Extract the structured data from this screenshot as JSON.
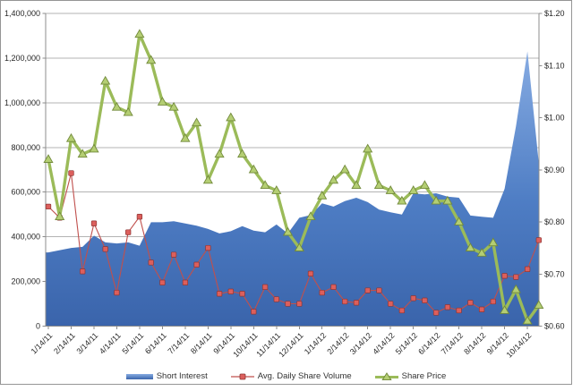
{
  "chart_data": {
    "type": "combo",
    "title": "",
    "x_tick_labels": [
      "1/14/11",
      "2/14/11",
      "3/14/11",
      "4/14/11",
      "5/14/11",
      "6/14/11",
      "7/14/11",
      "8/14/11",
      "9/14/11",
      "10/14/11",
      "11/14/11",
      "12/14/11",
      "1/14/12",
      "2/14/12",
      "3/14/12",
      "4/14/12",
      "5/14/12",
      "6/14/12",
      "7/14/12",
      "8/14/12",
      "9/14/12",
      "10/14/12"
    ],
    "points_per_tick": 2,
    "left_axis": {
      "min": 0,
      "max": 1400000,
      "step": 200000,
      "tick_labels": [
        "0",
        "200,000",
        "400,000",
        "600,000",
        "800,000",
        "1,000,000",
        "1,200,000",
        "1,400,000"
      ]
    },
    "right_axis": {
      "min": 0.6,
      "max": 1.2,
      "step": 0.1,
      "tick_labels": [
        "$0.60",
        "$0.70",
        "$0.80",
        "$0.90",
        "$1.00",
        "$1.10",
        "$1.20"
      ]
    },
    "grid": "horizontal",
    "legend_position": "bottom",
    "colors": {
      "area_fill_top": "#86abe2",
      "area_fill_bottom": "#3a64ab",
      "volume_line": "#C0504D",
      "volume_marker": "#DC5F5C",
      "price_line": "#9BBB59",
      "price_marker": "#B4CE73",
      "gridline": "#b3b3b3",
      "axis_line": "#8c8c8c",
      "tick_text": "#262626"
    },
    "series": [
      {
        "name": "Short Interest",
        "type": "area",
        "axis": "left",
        "values": [
          330000,
          340000,
          350000,
          355000,
          405000,
          375000,
          370000,
          375000,
          360000,
          465000,
          465000,
          470000,
          460000,
          450000,
          435000,
          415000,
          425000,
          448000,
          428000,
          420000,
          455000,
          415000,
          485000,
          497000,
          550000,
          535000,
          560000,
          575000,
          555000,
          522000,
          510000,
          500000,
          595000,
          590000,
          595000,
          580000,
          575000,
          495000,
          490000,
          485000,
          615000,
          895000,
          1230000,
          730000
        ]
      },
      {
        "name": "Avg. Daily Share Volume",
        "type": "line",
        "marker": "square",
        "axis": "left",
        "values": [
          535000,
          485000,
          685000,
          245000,
          460000,
          345000,
          150000,
          420000,
          490000,
          285000,
          195000,
          320000,
          195000,
          275000,
          350000,
          145000,
          155000,
          145000,
          65000,
          175000,
          120000,
          100000,
          100000,
          235000,
          150000,
          175000,
          110000,
          105000,
          160000,
          160000,
          100000,
          70000,
          125000,
          115000,
          60000,
          85000,
          70000,
          105000,
          75000,
          110000,
          225000,
          220000,
          255000,
          385000
        ]
      },
      {
        "name": "Share Price",
        "type": "line",
        "marker": "triangle",
        "axis": "right",
        "values": [
          0.92,
          0.81,
          0.96,
          0.93,
          0.94,
          1.07,
          1.02,
          1.01,
          1.16,
          1.11,
          1.03,
          1.02,
          0.96,
          0.99,
          0.88,
          0.93,
          1.0,
          0.93,
          0.9,
          0.87,
          0.86,
          0.78,
          0.75,
          0.81,
          0.85,
          0.88,
          0.9,
          0.87,
          0.94,
          0.87,
          0.86,
          0.84,
          0.86,
          0.87,
          0.84,
          0.84,
          0.8,
          0.75,
          0.74,
          0.76,
          0.63,
          0.67,
          0.61,
          0.64
        ]
      }
    ]
  }
}
